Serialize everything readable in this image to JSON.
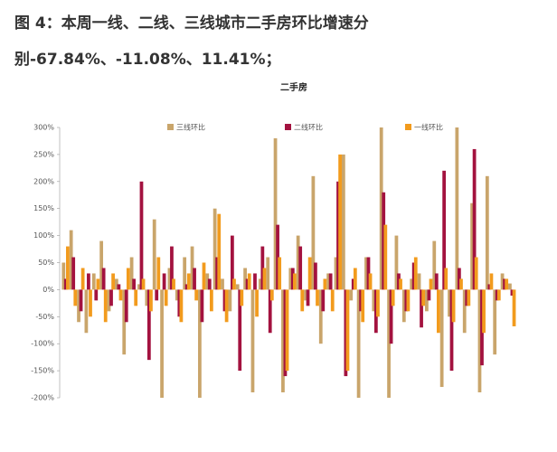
{
  "title": "图 4：本周一线、二线、三线城市二手房环比增速分别-67.84%、-11.08%、11.41%；",
  "chart_data": {
    "type": "bar",
    "title": "二手房",
    "categories": [
      null,
      null,
      null,
      null,
      null,
      null,
      null,
      null,
      null,
      null,
      null,
      null,
      null,
      null,
      null,
      null,
      null,
      null,
      null,
      null,
      null,
      null,
      null,
      null,
      null,
      null,
      null,
      null,
      null,
      null,
      null,
      null,
      null,
      null,
      null,
      null,
      null,
      null,
      null,
      null,
      null,
      null,
      null,
      null,
      null,
      null,
      null,
      null,
      null,
      null,
      null,
      null,
      null,
      null,
      null,
      null,
      null,
      null,
      null,
      null
    ],
    "series": [
      {
        "name": "三线环比",
        "color": "#c9a56b",
        "values": [
          50,
          110,
          -60,
          -80,
          30,
          90,
          -40,
          20,
          -120,
          60,
          10,
          -30,
          130,
          -200,
          40,
          -20,
          60,
          80,
          -200,
          30,
          150,
          20,
          -40,
          10,
          40,
          -190,
          20,
          60,
          280,
          -190,
          40,
          100,
          -20,
          210,
          -100,
          30,
          60,
          250,
          -20,
          -200,
          60,
          -40,
          300,
          -200,
          100,
          -60,
          20,
          30,
          -40,
          90,
          -180,
          -50,
          300,
          -80,
          160,
          -190,
          210,
          -120,
          30,
          11.41
        ]
      },
      {
        "name": "二线环比",
        "color": "#a3123f",
        "values": [
          20,
          60,
          -40,
          30,
          -20,
          40,
          -30,
          10,
          -60,
          20,
          200,
          -130,
          -20,
          30,
          80,
          -50,
          10,
          40,
          -60,
          20,
          60,
          -40,
          100,
          -150,
          20,
          30,
          80,
          -80,
          120,
          -160,
          40,
          80,
          -30,
          50,
          -40,
          30,
          200,
          -160,
          20,
          -40,
          60,
          -80,
          180,
          -100,
          30,
          -40,
          50,
          -70,
          -20,
          30,
          220,
          -150,
          40,
          -30,
          260,
          -140,
          10,
          -20,
          20,
          -11.08
        ]
      },
      {
        "name": "一线环比",
        "color": "#f29b1d",
        "values": [
          80,
          -30,
          40,
          -50,
          20,
          -60,
          30,
          -20,
          40,
          -30,
          20,
          -40,
          60,
          -30,
          20,
          -60,
          30,
          -20,
          50,
          -40,
          140,
          -60,
          20,
          -30,
          30,
          -50,
          40,
          -20,
          60,
          -150,
          30,
          -40,
          60,
          -30,
          20,
          -40,
          250,
          -150,
          40,
          -60,
          30,
          -50,
          120,
          -30,
          20,
          -40,
          60,
          -30,
          20,
          -80,
          40,
          -60,
          20,
          -30,
          60,
          -80,
          30,
          -20,
          20,
          -67.84
        ]
      }
    ],
    "ylim": [
      -200,
      300
    ],
    "yticks": [
      {
        "value": -200,
        "label": "-200%"
      },
      {
        "value": -150,
        "label": "-150%"
      },
      {
        "value": -100,
        "label": "-100%"
      },
      {
        "value": -50,
        "label": "-50%"
      },
      {
        "value": 0,
        "label": "0%"
      },
      {
        "value": 50,
        "label": "50%"
      },
      {
        "value": 100,
        "label": "100%"
      },
      {
        "value": 150,
        "label": "150%"
      },
      {
        "value": 200,
        "label": "200%"
      },
      {
        "value": 250,
        "label": "250%"
      },
      {
        "value": 300,
        "label": "300%"
      }
    ],
    "legend": "top"
  }
}
